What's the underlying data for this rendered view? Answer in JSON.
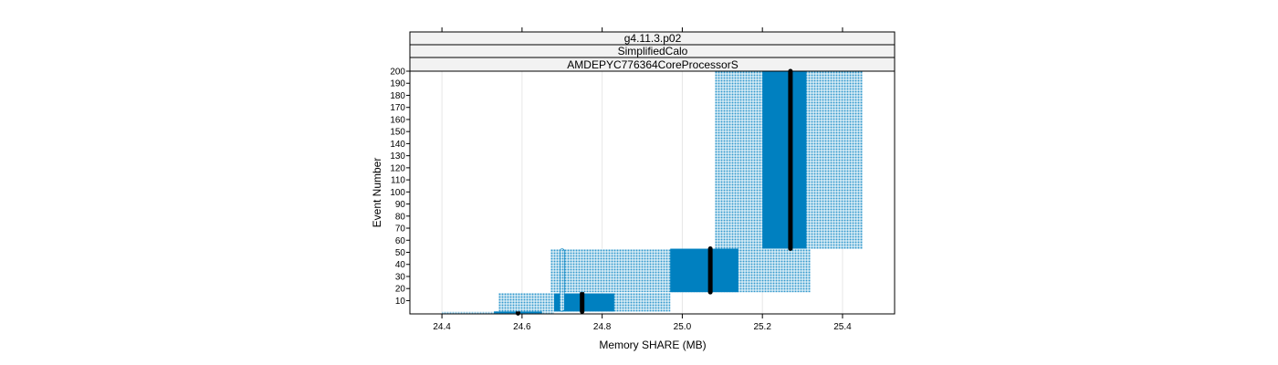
{
  "chart_data": {
    "type": "box-strip",
    "strips": [
      "g4.11.3.p02",
      "SimplifiedCalo",
      "AMDEPYC776364CoreProcessorS"
    ],
    "xlabel": "Memory SHARE (MB)",
    "ylabel": "Event Number",
    "xlim": [
      24.32,
      25.53
    ],
    "ylim": [
      -1,
      200
    ],
    "xticks": [
      "24.4",
      "24.6",
      "24.8",
      "25.0",
      "25.2",
      "25.4"
    ],
    "yticks": [
      "10",
      "20",
      "30",
      "40",
      "50",
      "60",
      "70",
      "80",
      "90",
      "100",
      "110",
      "120",
      "130",
      "140",
      "150",
      "160",
      "170",
      "180",
      "190",
      "200"
    ],
    "grid": true,
    "groups": [
      {
        "y_from": 0,
        "y_to": 1,
        "whisker_low": 24.4,
        "q1": 24.53,
        "median": 24.59,
        "q3": 24.65,
        "whisker_high": 24.68
      },
      {
        "y_from": 16,
        "y_to": 1,
        "whisker_low": 24.54,
        "q1": 24.68,
        "median": 24.75,
        "q3": 24.83,
        "whisker_high": 24.97
      },
      {
        "y_from": 53,
        "y_to": 17,
        "whisker_low": 24.67,
        "q1": 24.97,
        "median": 25.07,
        "q3": 25.14,
        "whisker_high": 25.32
      },
      {
        "y_from": 200,
        "y_to": 53,
        "whisker_low": 25.08,
        "q1": 25.2,
        "median": 25.27,
        "q3": 25.31,
        "whisker_high": 25.45
      }
    ],
    "outliers": [
      {
        "x": 24.7,
        "y_from": 53,
        "y_to": 1
      }
    ],
    "colors": {
      "fill": "#0080C0",
      "median": "#000000",
      "strip": "#F2F2F2",
      "grid": "#E6E6E6"
    }
  }
}
